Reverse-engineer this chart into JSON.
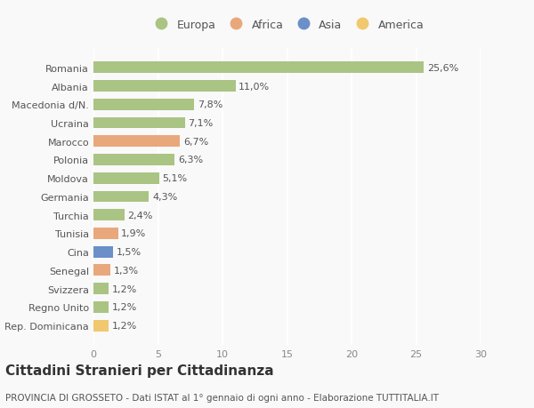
{
  "categories": [
    "Romania",
    "Albania",
    "Macedonia d/N.",
    "Ucraina",
    "Marocco",
    "Polonia",
    "Moldova",
    "Germania",
    "Turchia",
    "Tunisia",
    "Cina",
    "Senegal",
    "Svizzera",
    "Regno Unito",
    "Rep. Dominicana"
  ],
  "values": [
    25.6,
    11.0,
    7.8,
    7.1,
    6.7,
    6.3,
    5.1,
    4.3,
    2.4,
    1.9,
    1.5,
    1.3,
    1.2,
    1.2,
    1.2
  ],
  "labels": [
    "25,6%",
    "11,0%",
    "7,8%",
    "7,1%",
    "6,7%",
    "6,3%",
    "5,1%",
    "4,3%",
    "2,4%",
    "1,9%",
    "1,5%",
    "1,3%",
    "1,2%",
    "1,2%",
    "1,2%"
  ],
  "continents": [
    "Europa",
    "Europa",
    "Europa",
    "Europa",
    "Africa",
    "Europa",
    "Europa",
    "Europa",
    "Europa",
    "Africa",
    "Asia",
    "Africa",
    "Europa",
    "Europa",
    "America"
  ],
  "colors": {
    "Europa": "#aac484",
    "Africa": "#e8a87c",
    "Asia": "#6b8fc9",
    "America": "#f0c96e"
  },
  "xlim": [
    0,
    30
  ],
  "xticks": [
    0,
    5,
    10,
    15,
    20,
    25,
    30
  ],
  "title": "Cittadini Stranieri per Cittadinanza",
  "subtitle": "PROVINCIA DI GROSSETO - Dati ISTAT al 1° gennaio di ogni anno - Elaborazione TUTTITALIA.IT",
  "background_color": "#f9f9f9",
  "grid_color": "#ffffff",
  "title_fontsize": 11,
  "subtitle_fontsize": 7.5,
  "label_fontsize": 8,
  "tick_fontsize": 8,
  "legend_fontsize": 9,
  "legend_order": [
    "Europa",
    "Africa",
    "Asia",
    "America"
  ]
}
